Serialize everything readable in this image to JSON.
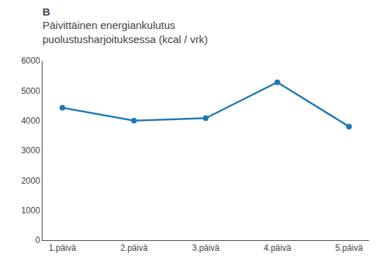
{
  "chart_data": {
    "type": "line",
    "title": "Päivittäinen energiankulutus\npuolustusharjoituksessa (kcal / vrk)",
    "annotations": [
      "B"
    ],
    "categories": [
      "1.päivä",
      "2.päivä",
      "3.päivä",
      "4.päivä",
      "5.päivä"
    ],
    "values": [
      4430,
      4000,
      4080,
      5280,
      3800
    ],
    "ylim": [
      0,
      6000
    ],
    "yticks": [
      0,
      1000,
      2000,
      3000,
      4000,
      5000,
      6000
    ],
    "grid": false,
    "marker": "circle"
  }
}
